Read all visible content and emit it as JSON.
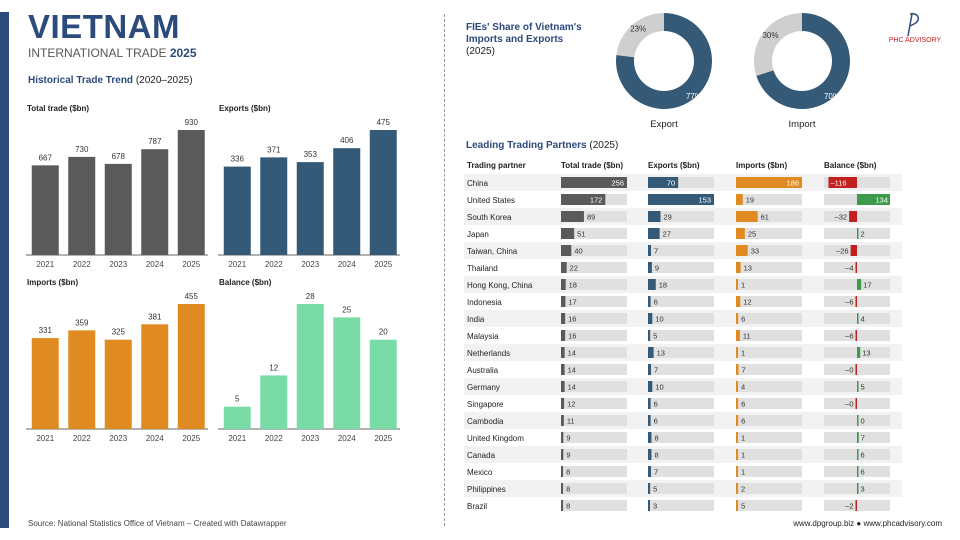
{
  "header": {
    "title": "VIETNAM",
    "subtitle_prefix": "INTERNATIONAL TRADE",
    "subtitle_year": "2025",
    "trend_title": "Historical Trade Trend",
    "trend_range": "(2020–2025)"
  },
  "logo": {
    "text": "PHC ADVISORY"
  },
  "fie": {
    "title": "FIEs' Share of Vietnam's Imports and Exports",
    "year": "(2025)"
  },
  "partners_header": {
    "title": "Leading Trading Partners",
    "year": "(2025)"
  },
  "footer": {
    "source": "Source: National Statistics Office of Vietnam – Created with Datawrapper",
    "links": "www.dpgroup.biz ● www.phcadvisory.com"
  },
  "colors": {
    "total": "#5a5a5a",
    "exports": "#355a77",
    "imports": "#e08a22",
    "balance": "#79dba6",
    "neg": "#c21f1f",
    "pos": "#3c9a4a",
    "track": "#e0e0e0",
    "donut_light": "#cfcfcf"
  },
  "chart_data": [
    {
      "type": "bar",
      "title": "Total trade ($bn)",
      "categories": [
        "2021",
        "2022",
        "2023",
        "2024",
        "2025"
      ],
      "values": [
        667,
        730,
        678,
        787,
        930
      ],
      "color": "#5a5a5a",
      "ylim": [
        0,
        930
      ]
    },
    {
      "type": "bar",
      "title": "Exports ($bn)",
      "categories": [
        "2021",
        "2022",
        "2023",
        "2024",
        "2025"
      ],
      "values": [
        336,
        371,
        353,
        406,
        475
      ],
      "color": "#355a77",
      "ylim": [
        0,
        475
      ]
    },
    {
      "type": "bar",
      "title": "Imports ($bn)",
      "categories": [
        "2021",
        "2022",
        "2023",
        "2024",
        "2025"
      ],
      "values": [
        331,
        359,
        325,
        381,
        455
      ],
      "color": "#e08a22",
      "ylim": [
        0,
        455
      ]
    },
    {
      "type": "bar",
      "title": "Balance ($bn)",
      "categories": [
        "2021",
        "2022",
        "2023",
        "2024",
        "2025"
      ],
      "values": [
        5,
        12,
        28,
        25,
        20
      ],
      "color": "#79dba6",
      "ylim": [
        0,
        28
      ]
    },
    {
      "type": "pie",
      "title": "Export",
      "center_label": [
        "Foreign",
        "invested:",
        "77%"
      ],
      "slices": [
        {
          "label": "77%",
          "value": 77,
          "color": "#355a77"
        },
        {
          "label": "23%",
          "value": 23,
          "color": "#cfcfcf"
        }
      ]
    },
    {
      "type": "pie",
      "title": "Import",
      "center_label": [
        "Foreign",
        "invested:",
        "70%"
      ],
      "slices": [
        {
          "label": "70%",
          "value": 70,
          "color": "#355a77"
        },
        {
          "label": "30%",
          "value": 30,
          "color": "#cfcfcf"
        }
      ]
    },
    {
      "type": "table",
      "title": "Leading Trading Partners (2025)",
      "columns": [
        "Trading partner",
        "Total trade ($bn)",
        "Exports ($bn)",
        "Imports ($bn)",
        "Balance ($bn)"
      ],
      "rows": [
        {
          "partner": "China",
          "total": 256,
          "exports": 70,
          "imports": 186,
          "balance": -116
        },
        {
          "partner": "United States",
          "total": 172,
          "exports": 153,
          "imports": 19,
          "balance": 134
        },
        {
          "partner": "South Korea",
          "total": 89,
          "exports": 29,
          "imports": 61,
          "balance": -32
        },
        {
          "partner": "Japan",
          "total": 51,
          "exports": 27,
          "imports": 25,
          "balance": 2
        },
        {
          "partner": "Taiwan, China",
          "total": 40,
          "exports": 7,
          "imports": 33,
          "balance": -26
        },
        {
          "partner": "Thailand",
          "total": 22,
          "exports": 9,
          "imports": 13,
          "balance": -4
        },
        {
          "partner": "Hong Kong, China",
          "total": 18,
          "exports": 18,
          "imports": 1,
          "balance": 17
        },
        {
          "partner": "Indonesia",
          "total": 17,
          "exports": 6,
          "imports": 12,
          "balance": -6
        },
        {
          "partner": "India",
          "total": 16,
          "exports": 10,
          "imports": 6,
          "balance": 4
        },
        {
          "partner": "Malaysia",
          "total": 16,
          "exports": 5,
          "imports": 11,
          "balance": -6
        },
        {
          "partner": "Netherlands",
          "total": 14,
          "exports": 13,
          "imports": 1,
          "balance": 13
        },
        {
          "partner": "Australia",
          "total": 14,
          "exports": 7,
          "imports": 7,
          "balance": 0
        },
        {
          "partner": "Germany",
          "total": 14,
          "exports": 10,
          "imports": 4,
          "balance": 5
        },
        {
          "partner": "Singapore",
          "total": 12,
          "exports": 6,
          "imports": 6,
          "balance": 0
        },
        {
          "partner": "Cambodia",
          "total": 11,
          "exports": 6,
          "imports": 6,
          "balance": 0
        },
        {
          "partner": "United Kingdom",
          "total": 9,
          "exports": 8,
          "imports": 1,
          "balance": 7
        },
        {
          "partner": "Canada",
          "total": 9,
          "exports": 8,
          "imports": 1,
          "balance": 6
        },
        {
          "partner": "Mexico",
          "total": 8,
          "exports": 7,
          "imports": 1,
          "balance": 6
        },
        {
          "partner": "Philippines",
          "total": 8,
          "exports": 5,
          "imports": 2,
          "balance": 3
        },
        {
          "partner": "Brazil",
          "total": 8,
          "exports": 3,
          "imports": 5,
          "balance": -2
        }
      ]
    }
  ]
}
